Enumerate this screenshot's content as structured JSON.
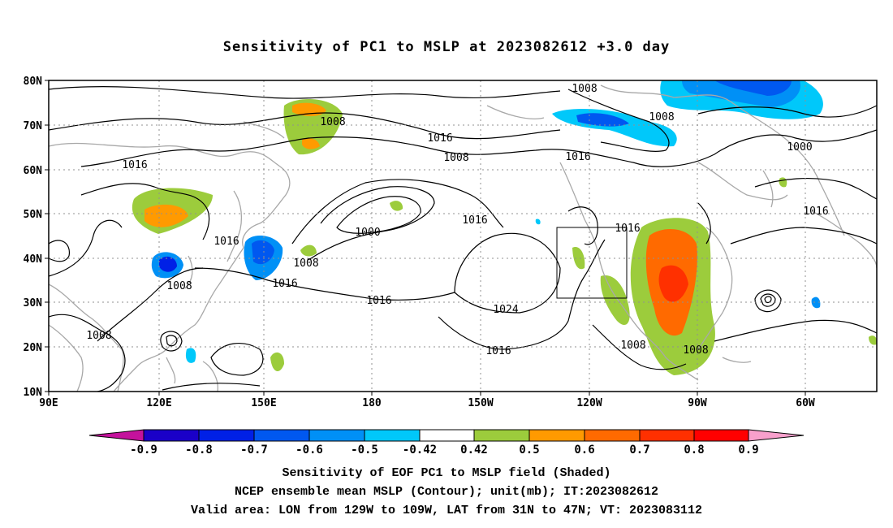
{
  "title": "Sensitivity of PC1 to MSLP at 2023082612 +3.0 day",
  "map": {
    "lat_labels": [
      "80N",
      "70N",
      "60N",
      "50N",
      "40N",
      "30N",
      "20N",
      "10N"
    ],
    "lon_labels": [
      "90E",
      "120E",
      "150E",
      "180",
      "150W",
      "120W",
      "90W",
      "60W"
    ],
    "contour_labels": [
      "1008",
      "1008",
      "1016",
      "1016",
      "1008",
      "1016",
      "1000",
      "1016",
      "1016",
      "1000",
      "1016",
      "1008",
      "1008",
      "1016",
      "1016",
      "1024",
      "1008",
      "1016",
      "1008",
      "1008",
      "1016",
      "1008"
    ],
    "contour_color": "#000000",
    "coastline_color": "#a8a8a8",
    "valid_area": {
      "lon_from": "129W",
      "lon_to": "109W",
      "lat_from": "31N",
      "lat_to": "47N"
    }
  },
  "colorbar": {
    "labels": [
      "-0.9",
      "-0.8",
      "-0.7",
      "-0.6",
      "-0.5",
      "-0.42",
      "0.42",
      "0.5",
      "0.6",
      "0.7",
      "0.8",
      "0.9"
    ],
    "colors": [
      "#c4129c",
      "#1a00c8",
      "#0020e6",
      "#0058f0",
      "#0090f6",
      "#00c8fa",
      "#ffffff",
      "#9ccc3c",
      "#ff9a00",
      "#ff6a00",
      "#ff3000",
      "#ff0000",
      "#f8a0cc"
    ]
  },
  "captions": [
    "Sensitivity of EOF PC1 to MSLP field (Shaded)",
    "NCEP ensemble mean MSLP (Contour); unit(mb); IT:2023082612",
    "Valid area: LON from 129W to 109W, LAT from 31N to 47N; VT: 2023083112"
  ]
}
